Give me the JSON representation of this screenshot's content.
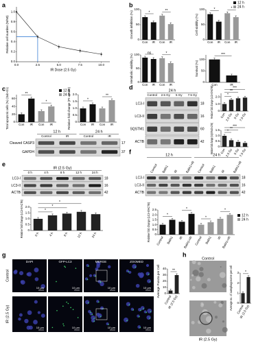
{
  "a": {
    "label": "a",
    "chart": {
      "type": "line",
      "ylabel": "Relative cell number (N/N0)",
      "xlabel": "IR Dose (2.5 Gy)",
      "x": [
        0,
        2.5,
        5,
        7.5,
        10
      ],
      "values": [
        1.0,
        0.5,
        0.3,
        0.22,
        0.15
      ],
      "color": "#333333",
      "guide_color": "#1f6fd0",
      "xlim": [
        0,
        11
      ],
      "xticks": [
        {
          "value": 0,
          "label": "0.0"
        },
        2.5,
        {
          "value": 5,
          "label": "5.0"
        },
        7.5,
        {
          "value": 10,
          "label": "10.0"
        }
      ],
      "ylim": [
        0,
        1.1
      ],
      "yticks": [
        {
          "value": 0,
          "label": "0.0"
        },
        0.2,
        0.4,
        0.6,
        0.8,
        {
          "value": 1,
          "label": "1.0"
        }
      ]
    }
  },
  "b": {
    "label": "b",
    "legend": [
      {
        "name": "12 h",
        "color": "#111111"
      },
      {
        "name": "24 h",
        "color": "#999999"
      }
    ],
    "charts": [
      {
        "type": "bar",
        "ylabel": "Growth inhibition (%)",
        "categories": [
          "Con",
          "IR",
          "Con",
          "IR"
        ],
        "values": [
          75,
          58,
          80,
          52
        ],
        "colors": [
          "#111111",
          "#111111",
          "#999999",
          "#999999"
        ],
        "ylim": [
          0,
          100
        ],
        "yticks": [
          0,
          50,
          100
        ],
        "annotations": [
          "*",
          "**"
        ]
      },
      {
        "type": "bar",
        "ylabel": "Cell viability (%)",
        "categories": [
          "Con",
          "IR",
          "Con",
          "IR"
        ],
        "values": [
          85,
          60,
          88,
          75
        ],
        "colors": [
          "#111111",
          "#111111",
          "#999999",
          "#999999"
        ],
        "ylim": [
          0,
          100
        ],
        "yticks": [
          0,
          50,
          100
        ],
        "annotations": [
          "*",
          "*"
        ]
      },
      {
        "type": "bar",
        "ylabel": "Metabolic viability (%)",
        "categories": [
          "Con",
          "IR",
          "Con",
          "IR"
        ],
        "values": [
          90,
          85,
          88,
          70
        ],
        "colors": [
          "#111111",
          "#111111",
          "#999999",
          "#999999"
        ],
        "ylim": [
          0,
          100
        ],
        "yticks": [
          0,
          50,
          100
        ],
        "annotations": [
          "ns",
          "*"
        ]
      },
      {
        "type": "bar",
        "ylabel": "Survival (%)",
        "categories": [
          "Con",
          "IR"
        ],
        "values": [
          100,
          30
        ],
        "colors": [
          "#111111",
          "#111111"
        ],
        "ylim": [
          0,
          120
        ],
        "yticks": [
          0,
          50,
          100
        ],
        "annotations": [
          "***"
        ]
      }
    ]
  },
  "c": {
    "label": "c",
    "legend": [
      {
        "name": "12 h",
        "color": "#111111"
      },
      {
        "name": "24 h",
        "color": "#999999"
      }
    ],
    "charts": [
      {
        "type": "bar",
        "ylabel": "Total apoptotic cells (%) (Sub-G1)",
        "categories": [
          "Con",
          "IR",
          "Con",
          "IR"
        ],
        "values": [
          20,
          60,
          28,
          40
        ],
        "colors": [
          "#111111",
          "#111111",
          "#999999",
          "#999999"
        ],
        "ylim": [
          0,
          70
        ],
        "yticks": [
          0,
          20,
          40,
          60
        ],
        "annotations": [
          "**",
          "*"
        ]
      },
      {
        "type": "bar",
        "ylabel": "Relative fold change (PI uptake)",
        "categories": [
          "Con",
          "IR",
          "Con",
          "IR"
        ],
        "values": [
          1,
          1.3,
          1,
          1.6
        ],
        "colors": [
          "#111111",
          "#111111",
          "#999999",
          "#999999"
        ],
        "ylim": [
          0,
          2
        ],
        "yticks": [
          0,
          0.5,
          {
            "value": 1,
            "label": "1.0"
          },
          1.5,
          {
            "value": 2,
            "label": "2.0"
          }
        ],
        "annotations": [
          "*",
          "**"
        ]
      }
    ],
    "blot": {
      "headers": [
        "12 h",
        "24 h"
      ],
      "conditions": [
        "Control",
        "IR",
        "Control",
        "IR"
      ],
      "bands": [
        {
          "name": "Cleaved CASP3",
          "size": 17
        },
        {
          "name": "GAPDH",
          "size": 37
        }
      ]
    }
  },
  "d": {
    "label": "d",
    "blot": {
      "headers": [
        "24 h"
      ],
      "conditions": [
        "Control",
        "2.5 Gy",
        "5 Gy",
        "7.5 Gy"
      ],
      "bands": [
        {
          "name": "LC3-I",
          "size": 18
        },
        {
          "name": "LC3-II",
          "size": 16
        },
        {
          "name": "SQSTM1",
          "size": 60
        },
        {
          "name": "ACTB",
          "size": 42
        }
      ]
    },
    "charts": [
      {
        "type": "bar",
        "ylabel": "Relative fold change (LC3-II/ACTB)",
        "categories": [
          "Con",
          "2.5 Gy",
          "5 Gy",
          "7.5 Gy"
        ],
        "values": [
          1,
          1.6,
          1.8,
          1.9
        ],
        "color": "#222222",
        "ylim": [
          0,
          2.5
        ],
        "yticks": [
          0,
          {
            "value": 1,
            "label": "1.0"
          },
          {
            "value": 2,
            "label": "2.0"
          }
        ],
        "annotations": [
          "*",
          "**",
          "***"
        ],
        "rotate_labels": true
      },
      {
        "type": "bar",
        "ylabel": "Relative fold change (SQSTM1/ACTB)",
        "categories": [
          "Con",
          "2.5 Gy",
          "5 Gy",
          "7.5 Gy"
        ],
        "values": [
          1,
          0.6,
          0.45,
          0.35
        ],
        "color": "#222222",
        "ylim": [
          0,
          1.5
        ],
        "yticks": [
          0,
          0.5,
          {
            "value": 1,
            "label": "1.0"
          },
          1.5
        ],
        "annotations": [
          "*",
          "**",
          "***"
        ],
        "rotate_labels": true
      }
    ]
  },
  "e": {
    "label": "e",
    "blot": {
      "headers": [
        "IR (2.5 Gy)"
      ],
      "conditions": [
        "0 h",
        "4 h",
        "8 h",
        "12 h",
        "24 h"
      ],
      "bands": [
        {
          "name": "LC3-I",
          "size": 18
        },
        {
          "name": "LC3-II",
          "size": 16
        },
        {
          "name": "ACTB",
          "size": 42
        }
      ]
    },
    "chart": {
      "type": "bar",
      "ylabel": "Relative fold change (LC3-II/ACTB)",
      "categories": [
        "0 h",
        "4 h",
        "8 h",
        "12 h",
        "24 h"
      ],
      "values": [
        1,
        1.3,
        1.45,
        1.6,
        1.4
      ],
      "color": "#222222",
      "ylim": [
        0,
        2
      ],
      "yticks": [
        0,
        0.5,
        {
          "value": 1,
          "label": "1.0"
        },
        1.5,
        {
          "value": 2,
          "label": "2.0"
        }
      ],
      "annotations": [
        "*",
        "*",
        "*"
      ],
      "rotate_labels": true
    }
  },
  "f": {
    "label": "f",
    "blot": {
      "headers": [
        "12 h",
        "24 h"
      ],
      "conditions": [
        "Control",
        "BafA1",
        "IR",
        "BafA1+IR",
        "Control",
        "BafA1",
        "IR",
        "BafA1+IR"
      ],
      "bands": [
        {
          "name": "LC3-I",
          "size": 18
        },
        {
          "name": "LC3-II",
          "size": 16
        },
        {
          "name": "ACTB",
          "size": 42
        }
      ]
    },
    "legend": [
      {
        "name": "12 h",
        "color": "#111111"
      },
      {
        "name": "24 h",
        "color": "#999999"
      }
    ],
    "chart": {
      "type": "bar",
      "ylabel": "Relative fold change (LC3-II/ACTB)",
      "categories": [
        "Control",
        "BafA1",
        "IR",
        "BafA1+IR",
        "Control",
        "BafA1",
        "IR",
        "BafA1+IR"
      ],
      "values": [
        1,
        1.5,
        1.3,
        2.1,
        1,
        1.25,
        1.6,
        2.0
      ],
      "colors": [
        "#111111",
        "#111111",
        "#111111",
        "#111111",
        "#999999",
        "#999999",
        "#999999",
        "#999999"
      ],
      "ylim": [
        0,
        2.5
      ],
      "yticks": [
        0,
        0.5,
        {
          "value": 1,
          "label": "1.0"
        },
        1.5,
        {
          "value": 2,
          "label": "2.0"
        },
        2.5
      ],
      "annotations": [
        "*",
        "*",
        "*",
        "*"
      ],
      "rotate_labels": true
    }
  },
  "g": {
    "label": "g",
    "columns": [
      "DAPI",
      "GFP-LC3",
      "MERGE",
      "ZOOMED"
    ],
    "rows": [
      "Control",
      "IR (2.5 Gy)"
    ],
    "scale": "10 µm",
    "chart": {
      "type": "bar",
      "ylabel": "Average Puncta per Cell",
      "categories": [
        "Control",
        "IR (2.5 Gy)"
      ],
      "values": [
        5,
        30
      ],
      "color": "#222222",
      "ylim": [
        0,
        40
      ],
      "yticks": [
        0,
        10,
        20,
        30,
        40
      ],
      "annotations": [
        "**"
      ],
      "rotate_labels": true
    }
  },
  "h": {
    "label": "h",
    "images": [
      "Control",
      "IR (2.5 Gy)"
    ],
    "chart": {
      "type": "bar",
      "ylabel": "Average no. of autophagosome per cell",
      "categories": [
        "Control",
        "IR (2.5 Gy)"
      ],
      "values": [
        1,
        2.6
      ],
      "color": "#222222",
      "ylim": [
        0,
        3
      ],
      "yticks": [
        0,
        1,
        2,
        3
      ],
      "annotations": [
        "*"
      ],
      "rotate_labels": true
    }
  }
}
